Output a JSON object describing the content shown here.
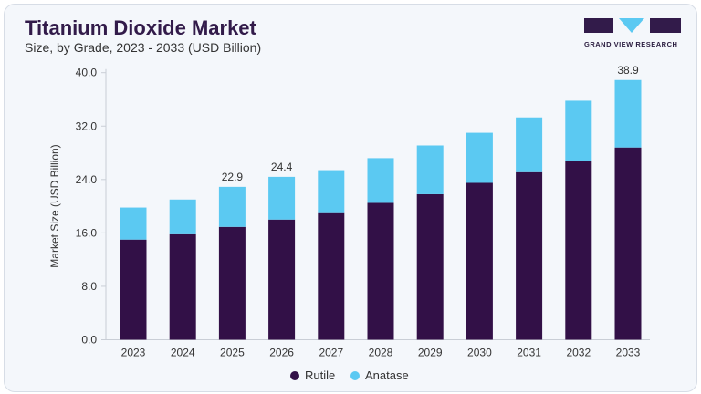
{
  "header": {
    "title": "Titanium Dioxide Market",
    "subtitle": "Size, by Grade, 2023 - 2033 (USD Billion)",
    "logo_text": "GRAND VIEW RESEARCH"
  },
  "colors": {
    "rutile": "#321047",
    "anatase": "#5bc9f2",
    "brand": "#321b4a"
  },
  "chart_data": {
    "type": "bar",
    "stacked": true,
    "title": "Titanium Dioxide Market",
    "subtitle": "Size, by Grade, 2023 - 2033 (USD Billion)",
    "xlabel": "",
    "ylabel": "Market Size (USD Billion)",
    "ylim": [
      0,
      40
    ],
    "yticks": [
      "0.0",
      "8.0",
      "16.0",
      "24.0",
      "32.0",
      "40.0"
    ],
    "categories": [
      "2023",
      "2024",
      "2025",
      "2026",
      "2027",
      "2028",
      "2029",
      "2030",
      "2031",
      "2032",
      "2033"
    ],
    "series": [
      {
        "name": "Rutile",
        "values": [
          15.0,
          15.8,
          16.9,
          18.0,
          19.1,
          20.5,
          21.8,
          23.5,
          25.1,
          26.8,
          28.8
        ]
      },
      {
        "name": "Anatase",
        "values": [
          4.8,
          5.2,
          6.0,
          6.4,
          6.3,
          6.7,
          7.3,
          7.5,
          8.2,
          9.0,
          10.1
        ]
      }
    ],
    "data_labels": {
      "2025": "22.9",
      "2026": "24.4",
      "2033": "38.9"
    },
    "grid": false,
    "legend": "bottom"
  }
}
